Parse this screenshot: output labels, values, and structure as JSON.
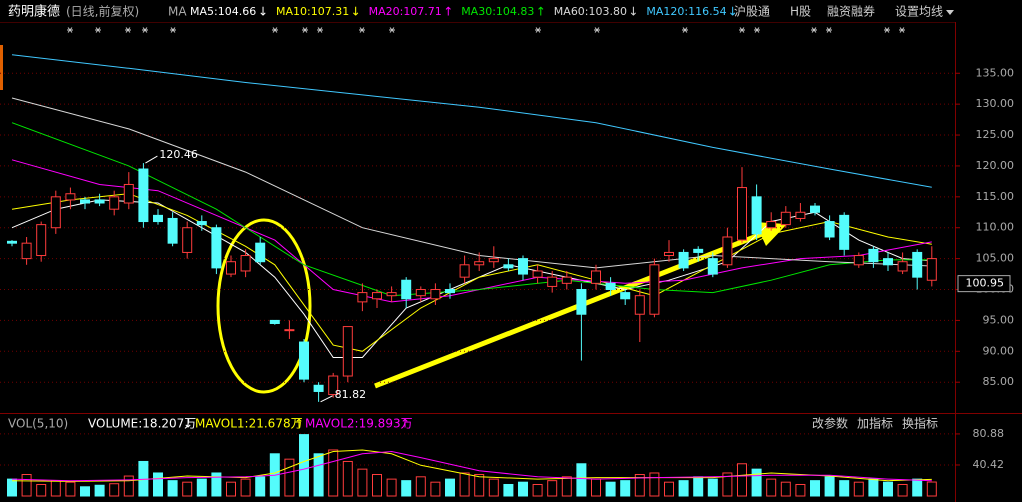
{
  "header": {
    "stock": "药明康德",
    "mode": "(日线,前复权)",
    "ma": "MA",
    "links": [
      "沪股通",
      "H股",
      "融资融券",
      "设置均线"
    ]
  },
  "chart_data": [
    {
      "type": "candlestick",
      "open": [
        107.8,
        105,
        105.5,
        110,
        114.5,
        114.5,
        114.5,
        113,
        114,
        119.5,
        112,
        111.5,
        106,
        111,
        110,
        102.5,
        103,
        107.5,
        95,
        93.5,
        91.5,
        84.5,
        83,
        86,
        98,
        98.5,
        99,
        101.5,
        99,
        98.5,
        100,
        102,
        104,
        104.5,
        104,
        105,
        102,
        100.5,
        101,
        100,
        101,
        101,
        99.5,
        96,
        96,
        105.5,
        106,
        106.5,
        105,
        104,
        108,
        115,
        110,
        110.5,
        111.5,
        113.5,
        111,
        112,
        104,
        106.5,
        105,
        103,
        106,
        101.5
      ],
      "high": [
        108,
        108.5,
        111,
        116,
        116.5,
        115,
        115.5,
        116,
        119,
        120.46,
        113,
        112.5,
        111,
        112,
        110.5,
        105.5,
        106.5,
        108.5,
        95,
        95,
        92,
        85,
        86.5,
        94,
        101,
        100,
        100.5,
        102,
        100.5,
        101,
        101,
        105.5,
        106,
        107,
        105,
        105.5,
        104,
        103,
        103,
        101,
        104,
        102,
        100,
        100,
        105,
        108,
        106.5,
        107,
        106,
        110,
        119.8,
        117,
        112.5,
        113.5,
        114,
        114,
        112,
        112.5,
        106,
        107,
        106,
        106,
        106.5,
        107
      ],
      "low": [
        107,
        104,
        104.5,
        109,
        113,
        113,
        113.5,
        112,
        113,
        110,
        110.5,
        107,
        105,
        109.5,
        102.5,
        102,
        102,
        104,
        94.3,
        92,
        85,
        81.82,
        82.5,
        85,
        96.5,
        97,
        98,
        97,
        98,
        97.5,
        98.5,
        101,
        103,
        103.5,
        103,
        101.5,
        101,
        99.5,
        100,
        88.5,
        100,
        99,
        97.5,
        91.5,
        95.5,
        104.5,
        103,
        104.5,
        102,
        103.5,
        107.5,
        108,
        109.5,
        110,
        111,
        112,
        108,
        105.5,
        103.5,
        103.5,
        103,
        102.5,
        100,
        100.5
      ],
      "close": [
        107.5,
        107.5,
        110.5,
        115,
        115.5,
        114,
        114,
        115,
        117,
        111,
        111,
        107.5,
        110,
        110.5,
        103.5,
        104.5,
        105.5,
        104.5,
        94.5,
        93.5,
        85.5,
        83.5,
        86,
        94,
        99.5,
        99.5,
        99.5,
        98.5,
        100,
        100,
        99.5,
        104,
        104.5,
        105,
        103.5,
        102.5,
        103,
        102,
        102,
        96,
        103,
        100,
        98.5,
        99,
        104,
        106,
        103.5,
        106,
        102.5,
        108.5,
        116.5,
        109,
        111,
        112.5,
        112.5,
        112.5,
        108.5,
        106.5,
        105.5,
        104.5,
        104,
        104.5,
        102,
        105
      ],
      "up_color": "#ff3c3c",
      "down_color": "#54fcfc",
      "ylim": [
        80.5,
        142
      ],
      "yticks": [
        {
          "value": 85,
          "label": "85.00"
        },
        {
          "value": 90,
          "label": "90.00"
        },
        {
          "value": 95,
          "label": "95.00"
        },
        {
          "value": 100,
          "label": "100.00"
        },
        {
          "value": 105,
          "label": "105.00"
        },
        {
          "value": 110,
          "label": "110.00"
        },
        {
          "value": 115,
          "label": "115.00"
        },
        {
          "value": 120,
          "label": "120.00"
        },
        {
          "value": 125,
          "label": "125.00"
        },
        {
          "value": 130,
          "label": "130.00"
        },
        {
          "value": 135,
          "label": "135.00"
        }
      ],
      "grid": true,
      "last_price": 100.95,
      "series": [
        {
          "name": "MA5",
          "label": "MA5:104.66",
          "trend": "↓",
          "color": "#ffffff",
          "x": [
            0,
            3,
            6,
            10,
            13,
            16,
            18,
            20,
            22,
            24,
            27,
            30,
            34,
            38,
            42,
            45,
            49,
            52,
            55,
            58,
            61,
            63
          ],
          "values": [
            110,
            113,
            114.5,
            114,
            110,
            106,
            102,
            96,
            89,
            89,
            97,
            100,
            104,
            102,
            100,
            101.5,
            104.5,
            111,
            112.5,
            108,
            105,
            104.66
          ]
        },
        {
          "name": "MA10",
          "label": "MA10:107.31",
          "trend": "↓",
          "color": "#ffff00",
          "x": [
            0,
            4,
            8,
            12,
            16,
            18,
            22,
            24,
            28,
            32,
            36,
            40,
            44,
            48,
            52,
            56,
            60,
            63
          ],
          "values": [
            113,
            114.5,
            115.5,
            112,
            107,
            104,
            91,
            90,
            97,
            102,
            104,
            101.5,
            99,
            104,
            109,
            111,
            108.5,
            107.31
          ]
        },
        {
          "name": "MA20",
          "label": "MA20:107.71",
          "trend": "↑",
          "color": "#ff00ff",
          "x": [
            0,
            6,
            10,
            14,
            18,
            22,
            26,
            30,
            36,
            42,
            46,
            50,
            54,
            58,
            63
          ],
          "values": [
            121,
            117,
            116,
            112,
            108,
            100,
            98,
            99,
            102,
            101,
            101.5,
            103.5,
            105,
            105.5,
            107.71
          ]
        },
        {
          "name": "MA30",
          "label": "MA30:104.83",
          "trend": "↑",
          "color": "#00e600",
          "x": [
            0,
            8,
            14,
            20,
            26,
            32,
            38,
            44,
            48,
            52,
            56,
            60,
            63
          ],
          "values": [
            127,
            120,
            113,
            104,
            99,
            100,
            101.5,
            100,
            99.5,
            101.5,
            104,
            104.8,
            104.83
          ]
        },
        {
          "name": "MA60",
          "label": "MA60:103.80",
          "trend": "↓",
          "color": "#d8d8d8",
          "x": [
            0,
            8,
            16,
            24,
            32,
            40,
            48,
            56,
            63
          ],
          "values": [
            131,
            126,
            119,
            110,
            105.5,
            103.5,
            105.5,
            104.5,
            103.8
          ]
        },
        {
          "name": "MA120",
          "label": "MA120:116.54",
          "trend": "↓",
          "color": "#40c8ff",
          "x": [
            0,
            8,
            16,
            24,
            32,
            40,
            48,
            56,
            63
          ],
          "values": [
            138,
            135.8,
            133.5,
            131.5,
            129.5,
            127,
            123,
            119.5,
            116.54
          ]
        }
      ]
    },
    {
      "type": "bar",
      "title": "VOL(5,10)",
      "volume_label": "VOLUME:18.207万",
      "volume_trend": "↓",
      "values": [
        22,
        28,
        15,
        20,
        18,
        12,
        14,
        16,
        26,
        45,
        30,
        20,
        18,
        22,
        30,
        18,
        22,
        25,
        55,
        48,
        80,
        55,
        60,
        45,
        35,
        28,
        22,
        20,
        25,
        18,
        22,
        30,
        28,
        22,
        15,
        18,
        15,
        20,
        25,
        42,
        22,
        18,
        20,
        28,
        30,
        18,
        20,
        25,
        22,
        30,
        42,
        35,
        22,
        18,
        15,
        20,
        25,
        20,
        18,
        22,
        18,
        15,
        22,
        18.207
      ],
      "ylim": [
        0,
        86
      ],
      "yticks": [
        40.42,
        80.88
      ],
      "grid": true,
      "series": [
        {
          "name": "MAVOL1",
          "label": "MAVOL1:21.678万",
          "trend": "↑",
          "color": "#ffff00",
          "x": [
            0,
            4,
            8,
            12,
            16,
            18,
            20,
            22,
            24,
            26,
            28,
            32,
            36,
            40,
            44,
            48,
            52,
            56,
            60,
            63
          ],
          "values": [
            20,
            19,
            20,
            26,
            24,
            30,
            45,
            58,
            60,
            55,
            40,
            25,
            22,
            24,
            24,
            24,
            30,
            26,
            20,
            21.678
          ]
        },
        {
          "name": "MAVOL2",
          "label": "MAVOL2:19.893万",
          "trend": "↑",
          "color": "#ff00ff",
          "x": [
            0,
            4,
            8,
            12,
            16,
            18,
            20,
            22,
            24,
            26,
            28,
            32,
            36,
            40,
            44,
            48,
            52,
            56,
            60,
            63
          ],
          "values": [
            22,
            20,
            21,
            24,
            25,
            27,
            35,
            45,
            55,
            58,
            50,
            33,
            25,
            22,
            24,
            25,
            27,
            27,
            22,
            19.893
          ]
        }
      ],
      "buttons": [
        "改参数",
        "加指标",
        "换指标"
      ]
    }
  ]
}
